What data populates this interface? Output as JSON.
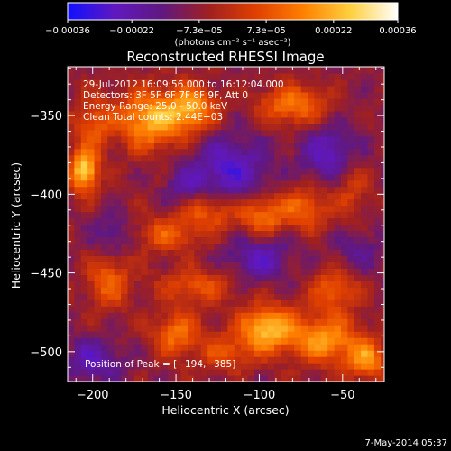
{
  "chart_data": {
    "type": "heatmap",
    "title": "Reconstructed RHESSI Image",
    "xlabel": "Heliocentric X (arcsec)",
    "ylabel": "Heliocentric Y (arcsec)",
    "xlim": [
      -215,
      -25
    ],
    "ylim": [
      -519,
      -319
    ],
    "xticks": [
      -200,
      -150,
      -100,
      -50
    ],
    "yticks": [
      -350,
      -400,
      -450,
      -500
    ],
    "xtick_labels": [
      "−200",
      "−150",
      "−100",
      "−50"
    ],
    "ytick_labels": [
      "−350",
      "−400",
      "−450",
      "−500"
    ],
    "colorbar": {
      "range": [
        -0.00036,
        0.00036
      ],
      "ticks": [
        -0.00036,
        -0.00022,
        -7.3e-05,
        7.3e-05,
        0.00022,
        0.00036
      ],
      "tick_labels": [
        "−0.00036",
        "−0.00022",
        "−7.3e−05",
        "7.3e−05",
        "0.00022",
        "0.00036"
      ],
      "units": "(photons cm⁻² s⁻¹ asec⁻²)",
      "colors": [
        "#1010ff",
        "#6018c0",
        "#601880",
        "#a02020",
        "#e04000",
        "#ff8000",
        "#ffd040",
        "#ffffff"
      ]
    },
    "annotations": [
      "29-Jul-2012 16:09:56.000 to 16:12:04.000",
      "Detectors: 3F 5F 6F 7F 8F 9F, Att 0",
      "Energy Range: 25.0 - 50.0 keV",
      "Clean    Total counts: 2.44E+03"
    ],
    "peak_label": "Position of Peak = [−194,−385]",
    "peak": [
      -194,
      -385
    ],
    "footer": "7-May-2014 05:37",
    "grid": false,
    "sources": [
      {
        "x": -205,
        "y": -385,
        "amp": 0.00036,
        "sx": 6,
        "sy": 9
      },
      {
        "x": -200,
        "y": -355,
        "amp": 0.00016,
        "sx": 8,
        "sy": 12
      },
      {
        "x": -165,
        "y": -352,
        "amp": 0.0003,
        "sx": 14,
        "sy": 13
      },
      {
        "x": -140,
        "y": -345,
        "amp": 0.00026,
        "sx": 10,
        "sy": 10
      },
      {
        "x": -80,
        "y": -343,
        "amp": 0.00022,
        "sx": 14,
        "sy": 9
      },
      {
        "x": -130,
        "y": -410,
        "amp": 0.00018,
        "sx": 12,
        "sy": 9
      },
      {
        "x": -98,
        "y": -413,
        "amp": 0.00022,
        "sx": 10,
        "sy": 9
      },
      {
        "x": -72,
        "y": -408,
        "amp": 0.00018,
        "sx": 10,
        "sy": 10
      },
      {
        "x": -155,
        "y": -425,
        "amp": 0.00016,
        "sx": 14,
        "sy": 8
      },
      {
        "x": -45,
        "y": -395,
        "amp": 0.00012,
        "sx": 8,
        "sy": 14
      },
      {
        "x": -190,
        "y": -455,
        "amp": 0.00018,
        "sx": 9,
        "sy": 12
      },
      {
        "x": -138,
        "y": -458,
        "amp": 0.00016,
        "sx": 15,
        "sy": 8
      },
      {
        "x": -55,
        "y": -460,
        "amp": 0.00018,
        "sx": 10,
        "sy": 9
      },
      {
        "x": -150,
        "y": -488,
        "amp": 0.0002,
        "sx": 10,
        "sy": 10
      },
      {
        "x": -95,
        "y": -485,
        "amp": 0.00032,
        "sx": 12,
        "sy": 10
      },
      {
        "x": -60,
        "y": -492,
        "amp": 0.00026,
        "sx": 14,
        "sy": 11
      },
      {
        "x": -35,
        "y": -505,
        "amp": 0.00024,
        "sx": 8,
        "sy": 9
      },
      {
        "x": -120,
        "y": -500,
        "amp": 0.00014,
        "sx": 12,
        "sy": 8
      }
    ],
    "sinks": [
      {
        "x": -118,
        "y": -385,
        "amp": 0.0002,
        "sx": 16,
        "sy": 15
      },
      {
        "x": -58,
        "y": -375,
        "amp": 0.00018,
        "sx": 12,
        "sy": 13
      },
      {
        "x": -145,
        "y": -395,
        "amp": 0.00012,
        "sx": 8,
        "sy": 8
      },
      {
        "x": -100,
        "y": -440,
        "amp": 0.00016,
        "sx": 14,
        "sy": 10
      },
      {
        "x": -200,
        "y": -505,
        "amp": 0.00016,
        "sx": 12,
        "sy": 10
      },
      {
        "x": -188,
        "y": -425,
        "amp": 0.00012,
        "sx": 8,
        "sy": 9
      },
      {
        "x": -40,
        "y": -435,
        "amp": 0.0001,
        "sx": 10,
        "sy": 10
      }
    ]
  }
}
